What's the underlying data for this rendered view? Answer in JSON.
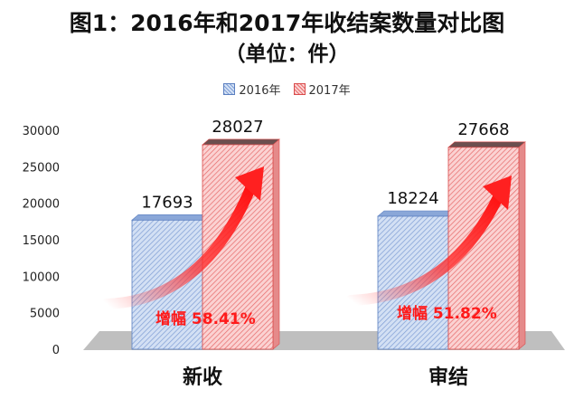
{
  "chart_data": {
    "type": "bar",
    "title": "图1：2016年和2017年收结案数量对比图",
    "subtitle": "（单位：件）",
    "categories": [
      "新收",
      "审结"
    ],
    "series": [
      {
        "name": "2016年",
        "values": [
          17693,
          18224
        ],
        "color": "#9db8e4"
      },
      {
        "name": "2017年",
        "values": [
          28027,
          27668
        ],
        "color": "#f0a8a8"
      }
    ],
    "yticks": [
      0,
      5000,
      10000,
      15000,
      20000,
      25000,
      30000
    ],
    "ylim": [
      0,
      30000
    ],
    "grid": false,
    "legend_position": "top-center",
    "annotations": [
      "增幅 58.41%",
      "增幅 51.82%"
    ],
    "annotation_color": "#ff1a1a",
    "arrow_color": "#ff2020"
  }
}
